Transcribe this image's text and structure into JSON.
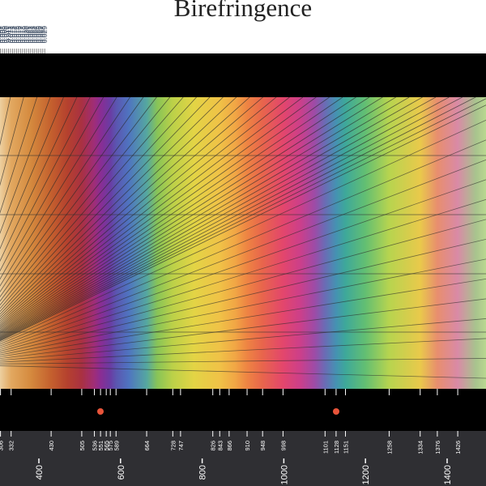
{
  "title": "Birefringence",
  "colors": {
    "band": "#000000",
    "bottom_scale_bg": "#2f2f33",
    "tick_text_top": "#3a4a60",
    "tick_text_bottom": "#ffffff",
    "marker": "#e8543a",
    "grid_line": "#2a2a2a"
  },
  "birefringence_scale": {
    "labels": [
      "0.006",
      "0.007",
      "0.008",
      "0.009",
      "0.010",
      "0.011",
      "0.012",
      "0.013",
      "0.014",
      "0.015",
      "0.016",
      "0.017",
      "0.018",
      "0.019",
      "0.020",
      "0.021",
      "0.022",
      "0.023",
      "0.024",
      "0.025",
      "0.026",
      "0.027",
      "0.028",
      "0.029"
    ]
  },
  "retardation_scale": {
    "minor_labels": [
      "306",
      "332",
      "430",
      "505",
      "536",
      "551",
      "565",
      "575",
      "589",
      "664",
      "728",
      "747",
      "826",
      "843",
      "866",
      "910",
      "948",
      "998",
      "1101",
      "1128",
      "1151",
      "1258",
      "1334",
      "1376",
      "1426"
    ],
    "major_labels": [
      "400",
      "600",
      "800",
      "1000",
      "1200",
      "1400"
    ]
  },
  "markers": [
    {
      "label_ref": "551",
      "name": "first-order-red-marker"
    },
    {
      "label_ref": "1128",
      "name": "second-order-red-marker"
    }
  ],
  "color_chart": {
    "spectrum_stops": [
      {
        "nm": 250,
        "color": "#f4e2c2"
      },
      {
        "nm": 300,
        "color": "#eccfa0"
      },
      {
        "nm": 332,
        "color": "#e2a860"
      },
      {
        "nm": 380,
        "color": "#d58a3e"
      },
      {
        "nm": 430,
        "color": "#c4602e"
      },
      {
        "nm": 470,
        "color": "#b5412e"
      },
      {
        "nm": 505,
        "color": "#a93142"
      },
      {
        "nm": 536,
        "color": "#9f2d78"
      },
      {
        "nm": 551,
        "color": "#8a2d93"
      },
      {
        "nm": 575,
        "color": "#6a3ca3"
      },
      {
        "nm": 589,
        "color": "#5b55b0"
      },
      {
        "nm": 620,
        "color": "#4f74c0"
      },
      {
        "nm": 664,
        "color": "#55a7a0"
      },
      {
        "nm": 690,
        "color": "#88c457"
      },
      {
        "nm": 728,
        "color": "#bcd148"
      },
      {
        "nm": 780,
        "color": "#e3d445"
      },
      {
        "nm": 843,
        "color": "#f0c247"
      },
      {
        "nm": 880,
        "color": "#f1a745"
      },
      {
        "nm": 910,
        "color": "#ee8443"
      },
      {
        "nm": 948,
        "color": "#e8654c"
      },
      {
        "nm": 998,
        "color": "#e3466c"
      },
      {
        "nm": 1040,
        "color": "#cc3f8a"
      },
      {
        "nm": 1075,
        "color": "#9e4ba6"
      },
      {
        "nm": 1101,
        "color": "#6a6cb5"
      },
      {
        "nm": 1128,
        "color": "#4592b2"
      },
      {
        "nm": 1151,
        "color": "#3ea89a"
      },
      {
        "nm": 1200,
        "color": "#63bf72"
      },
      {
        "nm": 1258,
        "color": "#b7d44f"
      },
      {
        "nm": 1334,
        "color": "#e9c94b"
      },
      {
        "nm": 1376,
        "color": "#e88e6e"
      },
      {
        "nm": 1426,
        "color": "#d98aa6"
      },
      {
        "nm": 1470,
        "color": "#a8c38e"
      },
      {
        "nm": 1540,
        "color": "#b9d890"
      }
    ]
  }
}
